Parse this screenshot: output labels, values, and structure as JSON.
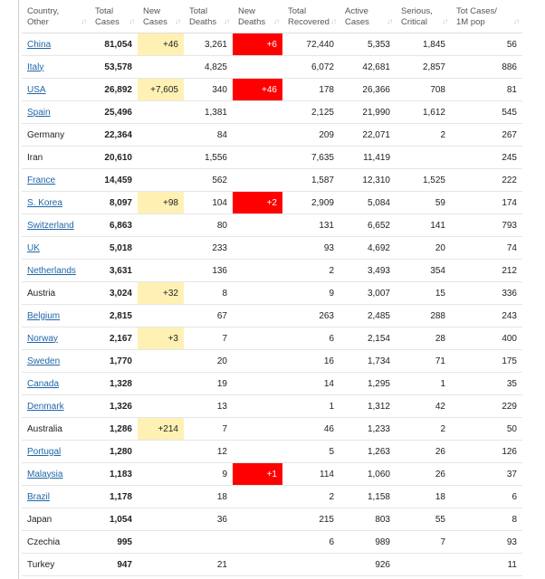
{
  "headers": [
    {
      "line1": "Country,",
      "line2": "Other"
    },
    {
      "line1": "Total",
      "line2": "Cases"
    },
    {
      "line1": "New",
      "line2": "Cases"
    },
    {
      "line1": "Total",
      "line2": "Deaths"
    },
    {
      "line1": "New",
      "line2": "Deaths"
    },
    {
      "line1": "Total",
      "line2": "Recovered"
    },
    {
      "line1": "Active",
      "line2": "Cases"
    },
    {
      "line1": "Serious,",
      "line2": "Critical"
    },
    {
      "line1": "Tot Cases/",
      "line2": "1M pop"
    }
  ],
  "sort_icon": "sort-arrows-icon",
  "colors": {
    "link": "#1f66a7",
    "new_cases_bg": "#fff1b3",
    "new_deaths_bg": "#ff0000"
  },
  "rows": [
    {
      "country": "China",
      "link": true,
      "total_cases": "81,054",
      "new_cases": "+46",
      "total_deaths": "3,261",
      "new_deaths": "+6",
      "total_recovered": "72,440",
      "active_cases": "5,353",
      "serious": "1,845",
      "per_million": "56"
    },
    {
      "country": "Italy",
      "link": true,
      "total_cases": "53,578",
      "new_cases": "",
      "total_deaths": "4,825",
      "new_deaths": "",
      "total_recovered": "6,072",
      "active_cases": "42,681",
      "serious": "2,857",
      "per_million": "886"
    },
    {
      "country": "USA",
      "link": true,
      "total_cases": "26,892",
      "new_cases": "+7,605",
      "total_deaths": "340",
      "new_deaths": "+46",
      "total_recovered": "178",
      "active_cases": "26,366",
      "serious": "708",
      "per_million": "81"
    },
    {
      "country": "Spain",
      "link": true,
      "total_cases": "25,496",
      "new_cases": "",
      "total_deaths": "1,381",
      "new_deaths": "",
      "total_recovered": "2,125",
      "active_cases": "21,990",
      "serious": "1,612",
      "per_million": "545"
    },
    {
      "country": "Germany",
      "link": false,
      "total_cases": "22,364",
      "new_cases": "",
      "total_deaths": "84",
      "new_deaths": "",
      "total_recovered": "209",
      "active_cases": "22,071",
      "serious": "2",
      "per_million": "267"
    },
    {
      "country": "Iran",
      "link": false,
      "total_cases": "20,610",
      "new_cases": "",
      "total_deaths": "1,556",
      "new_deaths": "",
      "total_recovered": "7,635",
      "active_cases": "11,419",
      "serious": "",
      "per_million": "245"
    },
    {
      "country": "France",
      "link": true,
      "total_cases": "14,459",
      "new_cases": "",
      "total_deaths": "562",
      "new_deaths": "",
      "total_recovered": "1,587",
      "active_cases": "12,310",
      "serious": "1,525",
      "per_million": "222"
    },
    {
      "country": "S. Korea",
      "link": true,
      "total_cases": "8,097",
      "new_cases": "+98",
      "total_deaths": "104",
      "new_deaths": "+2",
      "total_recovered": "2,909",
      "active_cases": "5,084",
      "serious": "59",
      "per_million": "174"
    },
    {
      "country": "Switzerland",
      "link": true,
      "total_cases": "6,863",
      "new_cases": "",
      "total_deaths": "80",
      "new_deaths": "",
      "total_recovered": "131",
      "active_cases": "6,652",
      "serious": "141",
      "per_million": "793"
    },
    {
      "country": "UK",
      "link": true,
      "total_cases": "5,018",
      "new_cases": "",
      "total_deaths": "233",
      "new_deaths": "",
      "total_recovered": "93",
      "active_cases": "4,692",
      "serious": "20",
      "per_million": "74"
    },
    {
      "country": "Netherlands",
      "link": true,
      "total_cases": "3,631",
      "new_cases": "",
      "total_deaths": "136",
      "new_deaths": "",
      "total_recovered": "2",
      "active_cases": "3,493",
      "serious": "354",
      "per_million": "212"
    },
    {
      "country": "Austria",
      "link": false,
      "total_cases": "3,024",
      "new_cases": "+32",
      "total_deaths": "8",
      "new_deaths": "",
      "total_recovered": "9",
      "active_cases": "3,007",
      "serious": "15",
      "per_million": "336"
    },
    {
      "country": "Belgium",
      "link": true,
      "total_cases": "2,815",
      "new_cases": "",
      "total_deaths": "67",
      "new_deaths": "",
      "total_recovered": "263",
      "active_cases": "2,485",
      "serious": "288",
      "per_million": "243"
    },
    {
      "country": "Norway",
      "link": true,
      "total_cases": "2,167",
      "new_cases": "+3",
      "total_deaths": "7",
      "new_deaths": "",
      "total_recovered": "6",
      "active_cases": "2,154",
      "serious": "28",
      "per_million": "400"
    },
    {
      "country": "Sweden",
      "link": true,
      "total_cases": "1,770",
      "new_cases": "",
      "total_deaths": "20",
      "new_deaths": "",
      "total_recovered": "16",
      "active_cases": "1,734",
      "serious": "71",
      "per_million": "175"
    },
    {
      "country": "Canada",
      "link": true,
      "total_cases": "1,328",
      "new_cases": "",
      "total_deaths": "19",
      "new_deaths": "",
      "total_recovered": "14",
      "active_cases": "1,295",
      "serious": "1",
      "per_million": "35"
    },
    {
      "country": "Denmark",
      "link": true,
      "total_cases": "1,326",
      "new_cases": "",
      "total_deaths": "13",
      "new_deaths": "",
      "total_recovered": "1",
      "active_cases": "1,312",
      "serious": "42",
      "per_million": "229"
    },
    {
      "country": "Australia",
      "link": false,
      "total_cases": "1,286",
      "new_cases": "+214",
      "total_deaths": "7",
      "new_deaths": "",
      "total_recovered": "46",
      "active_cases": "1,233",
      "serious": "2",
      "per_million": "50"
    },
    {
      "country": "Portugal",
      "link": true,
      "total_cases": "1,280",
      "new_cases": "",
      "total_deaths": "12",
      "new_deaths": "",
      "total_recovered": "5",
      "active_cases": "1,263",
      "serious": "26",
      "per_million": "126"
    },
    {
      "country": "Malaysia",
      "link": true,
      "total_cases": "1,183",
      "new_cases": "",
      "total_deaths": "9",
      "new_deaths": "+1",
      "total_recovered": "114",
      "active_cases": "1,060",
      "serious": "26",
      "per_million": "37"
    },
    {
      "country": "Brazil",
      "link": true,
      "total_cases": "1,178",
      "new_cases": "",
      "total_deaths": "18",
      "new_deaths": "",
      "total_recovered": "2",
      "active_cases": "1,158",
      "serious": "18",
      "per_million": "6"
    },
    {
      "country": "Japan",
      "link": false,
      "total_cases": "1,054",
      "new_cases": "",
      "total_deaths": "36",
      "new_deaths": "",
      "total_recovered": "215",
      "active_cases": "803",
      "serious": "55",
      "per_million": "8"
    },
    {
      "country": "Czechia",
      "link": false,
      "total_cases": "995",
      "new_cases": "",
      "total_deaths": "",
      "new_deaths": "",
      "total_recovered": "6",
      "active_cases": "989",
      "serious": "7",
      "per_million": "93"
    },
    {
      "country": "Turkey",
      "link": false,
      "total_cases": "947",
      "new_cases": "",
      "total_deaths": "21",
      "new_deaths": "",
      "total_recovered": "",
      "active_cases": "926",
      "serious": "",
      "per_million": "11"
    }
  ]
}
